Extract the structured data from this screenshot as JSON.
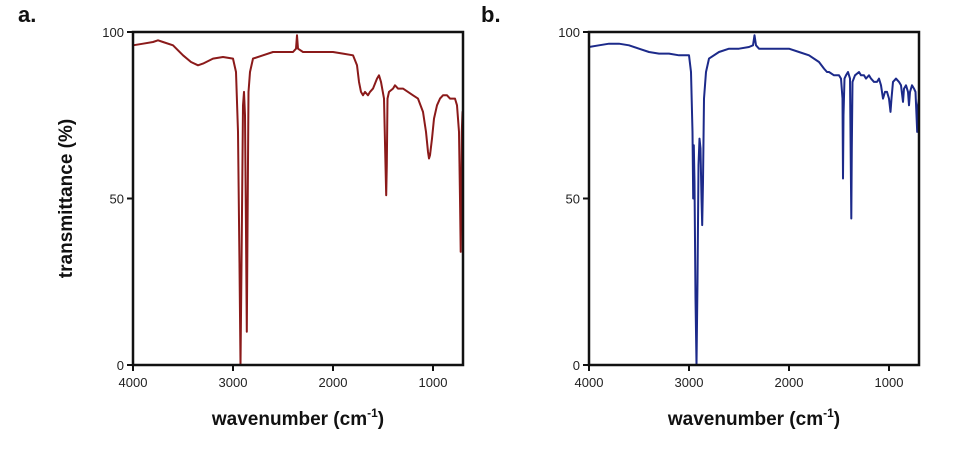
{
  "chart_data": [
    {
      "type": "line",
      "panel_label": "a.",
      "xlabel": "wavenumber (cm",
      "xlabel_sup": "-1",
      "xlabel_close": ")",
      "ylabel": "transmittance (%)",
      "xlim": [
        4000,
        700
      ],
      "ylim": [
        0,
        100
      ],
      "x_ticks": [
        "4000",
        "3000",
        "2000",
        "1000"
      ],
      "x_tick_values": [
        4000,
        3000,
        2000,
        1000
      ],
      "y_ticks": [
        "0",
        "50",
        "100"
      ],
      "y_tick_values": [
        0,
        50,
        100
      ],
      "grid": false,
      "series": [
        {
          "color": "#8b1a1a",
          "points": [
            [
              4000,
              96
            ],
            [
              3900,
              96.5
            ],
            [
              3800,
              97
            ],
            [
              3750,
              97.5
            ],
            [
              3700,
              97
            ],
            [
              3600,
              96
            ],
            [
              3500,
              93
            ],
            [
              3420,
              91
            ],
            [
              3350,
              90
            ],
            [
              3300,
              90.5
            ],
            [
              3200,
              92
            ],
            [
              3100,
              92.5
            ],
            [
              3000,
              92
            ],
            [
              2970,
              88
            ],
            [
              2950,
              70
            ],
            [
              2935,
              30
            ],
            [
              2925,
              0
            ],
            [
              2915,
              30
            ],
            [
              2900,
              78
            ],
            [
              2890,
              82
            ],
            [
              2880,
              75
            ],
            [
              2870,
              40
            ],
            [
              2862,
              10
            ],
            [
              2855,
              40
            ],
            [
              2845,
              82
            ],
            [
              2830,
              88
            ],
            [
              2800,
              92
            ],
            [
              2700,
              93
            ],
            [
              2600,
              94
            ],
            [
              2500,
              94
            ],
            [
              2400,
              94
            ],
            [
              2370,
              95
            ],
            [
              2360,
              99
            ],
            [
              2350,
              95
            ],
            [
              2300,
              94
            ],
            [
              2200,
              94
            ],
            [
              2000,
              94
            ],
            [
              1900,
              93.5
            ],
            [
              1800,
              93
            ],
            [
              1760,
              90
            ],
            [
              1740,
              85
            ],
            [
              1720,
              82
            ],
            [
              1700,
              81
            ],
            [
              1680,
              82
            ],
            [
              1650,
              81
            ],
            [
              1630,
              82
            ],
            [
              1600,
              83
            ],
            [
              1560,
              86
            ],
            [
              1540,
              87
            ],
            [
              1520,
              85
            ],
            [
              1490,
              80
            ],
            [
              1475,
              60
            ],
            [
              1468,
              51
            ],
            [
              1462,
              60
            ],
            [
              1455,
              80
            ],
            [
              1440,
              82
            ],
            [
              1400,
              83
            ],
            [
              1380,
              84
            ],
            [
              1350,
              83
            ],
            [
              1300,
              83
            ],
            [
              1250,
              82
            ],
            [
              1200,
              81
            ],
            [
              1150,
              80
            ],
            [
              1100,
              76
            ],
            [
              1070,
              70
            ],
            [
              1050,
              64
            ],
            [
              1040,
              62
            ],
            [
              1030,
              63
            ],
            [
              1010,
              68
            ],
            [
              990,
              74
            ],
            [
              960,
              78
            ],
            [
              930,
              80
            ],
            [
              900,
              81
            ],
            [
              860,
              81
            ],
            [
              830,
              80
            ],
            [
              800,
              80
            ],
            [
              780,
              80
            ],
            [
              760,
              78
            ],
            [
              740,
              70
            ],
            [
              730,
              50
            ],
            [
              723,
              34
            ],
            [
              718,
              45
            ],
            [
              712,
              70
            ],
            [
              705,
              76
            ],
            [
              700,
              76
            ]
          ]
        }
      ]
    },
    {
      "type": "line",
      "panel_label": "b.",
      "xlabel": "wavenumber (cm",
      "xlabel_sup": "-1",
      "xlabel_close": ")",
      "ylabel": "",
      "xlim": [
        4000,
        700
      ],
      "ylim": [
        0,
        100
      ],
      "x_ticks": [
        "4000",
        "3000",
        "2000",
        "1000"
      ],
      "x_tick_values": [
        4000,
        3000,
        2000,
        1000
      ],
      "y_ticks": [
        "0",
        "50",
        "100"
      ],
      "y_tick_values": [
        0,
        50,
        100
      ],
      "grid": false,
      "series": [
        {
          "color": "#1c2a8a",
          "points": [
            [
              4000,
              95.5
            ],
            [
              3900,
              96
            ],
            [
              3800,
              96.5
            ],
            [
              3700,
              96.5
            ],
            [
              3600,
              96
            ],
            [
              3500,
              95
            ],
            [
              3400,
              94
            ],
            [
              3300,
              93.5
            ],
            [
              3200,
              93.5
            ],
            [
              3100,
              93
            ],
            [
              3000,
              93
            ],
            [
              2980,
              88
            ],
            [
              2965,
              70
            ],
            [
              2958,
              50
            ],
            [
              2952,
              66
            ],
            [
              2945,
              55
            ],
            [
              2935,
              20
            ],
            [
              2925,
              0
            ],
            [
              2915,
              25
            ],
            [
              2905,
              60
            ],
            [
              2895,
              68
            ],
            [
              2885,
              65
            ],
            [
              2875,
              50
            ],
            [
              2868,
              42
            ],
            [
              2860,
              55
            ],
            [
              2850,
              80
            ],
            [
              2830,
              88
            ],
            [
              2800,
              92
            ],
            [
              2700,
              94
            ],
            [
              2600,
              95
            ],
            [
              2500,
              95
            ],
            [
              2400,
              95.5
            ],
            [
              2360,
              96
            ],
            [
              2345,
              99
            ],
            [
              2330,
              96
            ],
            [
              2300,
              95
            ],
            [
              2200,
              95
            ],
            [
              2100,
              95
            ],
            [
              2000,
              95
            ],
            [
              1900,
              94
            ],
            [
              1800,
              93
            ],
            [
              1700,
              91
            ],
            [
              1650,
              89
            ],
            [
              1620,
              88
            ],
            [
              1600,
              88
            ],
            [
              1550,
              87
            ],
            [
              1500,
              87
            ],
            [
              1480,
              86
            ],
            [
              1465,
              80
            ],
            [
              1460,
              56
            ],
            [
              1455,
              75
            ],
            [
              1445,
              86
            ],
            [
              1430,
              87
            ],
            [
              1410,
              88
            ],
            [
              1390,
              86
            ],
            [
              1382,
              60
            ],
            [
              1377,
              44
            ],
            [
              1372,
              65
            ],
            [
              1365,
              85
            ],
            [
              1340,
              87
            ],
            [
              1300,
              88
            ],
            [
              1280,
              87
            ],
            [
              1250,
              87
            ],
            [
              1230,
              86
            ],
            [
              1200,
              87
            ],
            [
              1180,
              86
            ],
            [
              1150,
              85
            ],
            [
              1120,
              85
            ],
            [
              1100,
              86
            ],
            [
              1080,
              84
            ],
            [
              1060,
              80
            ],
            [
              1040,
              82
            ],
            [
              1020,
              82
            ],
            [
              1000,
              80
            ],
            [
              985,
              76
            ],
            [
              975,
              80
            ],
            [
              960,
              85
            ],
            [
              930,
              86
            ],
            [
              900,
              85
            ],
            [
              880,
              84
            ],
            [
              860,
              79
            ],
            [
              850,
              83
            ],
            [
              830,
              84
            ],
            [
              810,
              82
            ],
            [
              800,
              78
            ],
            [
              790,
              82
            ],
            [
              770,
              84
            ],
            [
              750,
              83
            ],
            [
              735,
              82
            ],
            [
              725,
              75
            ],
            [
              718,
              70
            ],
            [
              710,
              78
            ],
            [
              700,
              80
            ]
          ]
        }
      ]
    }
  ]
}
